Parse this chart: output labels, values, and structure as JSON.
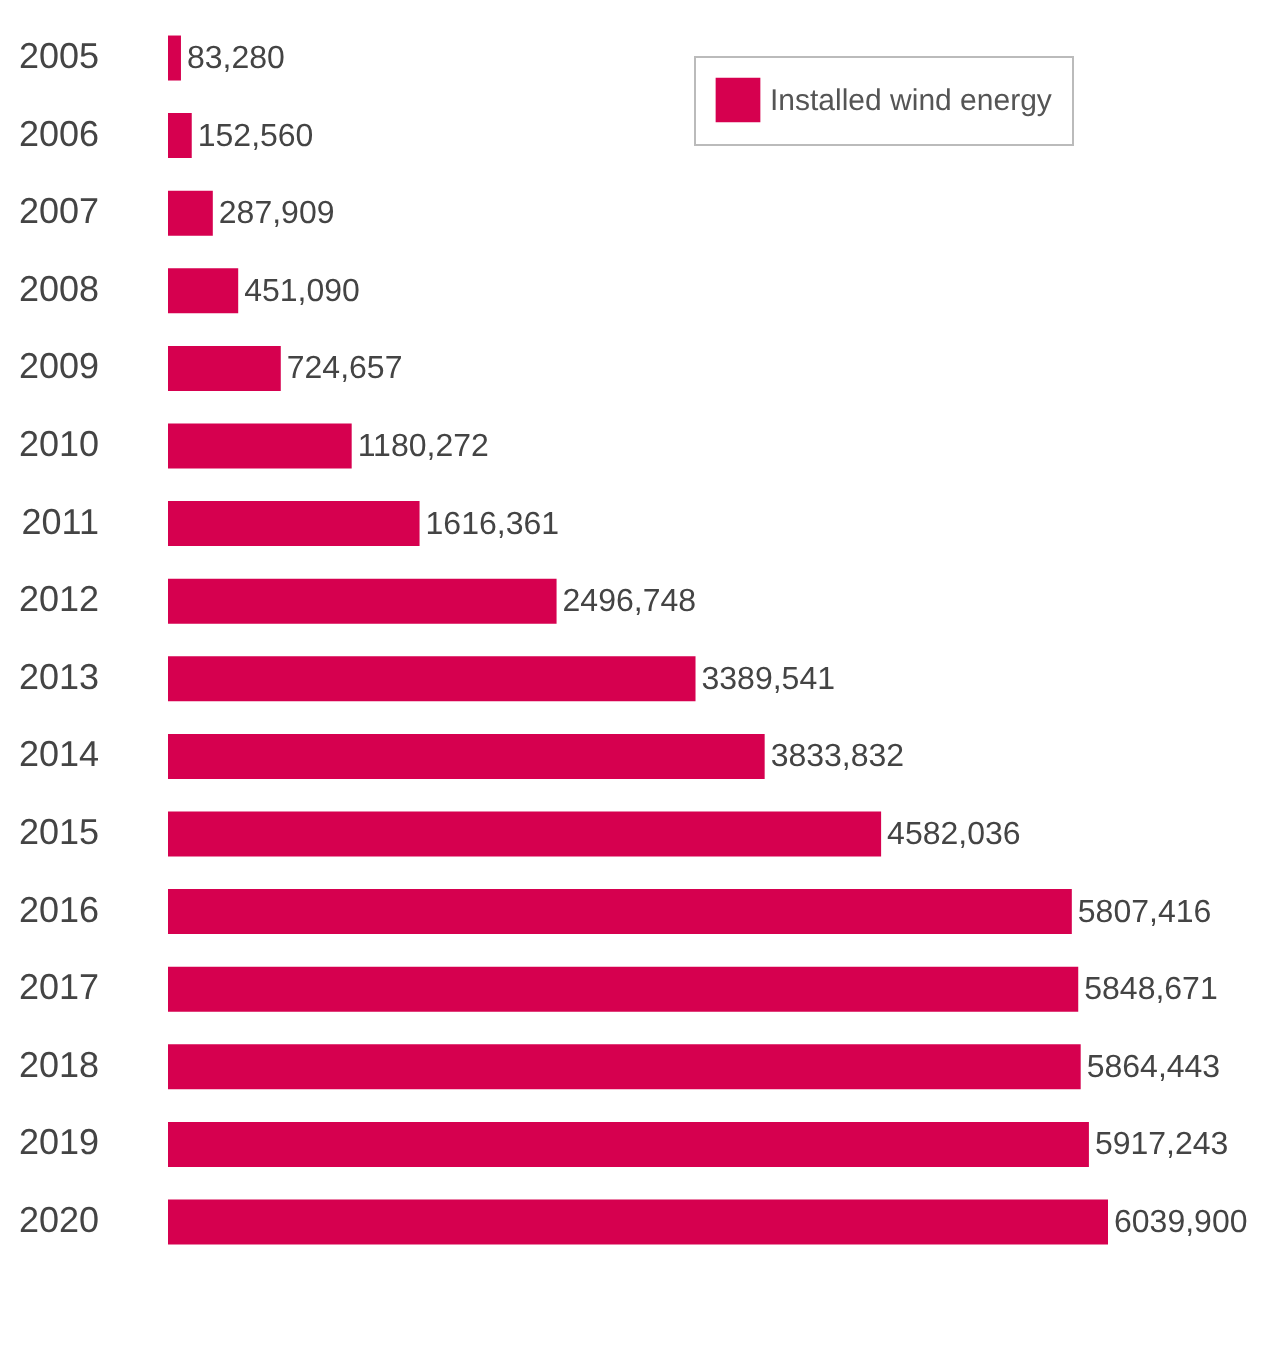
{
  "chart_data": {
    "type": "bar",
    "orientation": "horizontal",
    "categories": [
      "2005",
      "2006",
      "2007",
      "2008",
      "2009",
      "2010",
      "2011",
      "2012",
      "2013",
      "2014",
      "2015",
      "2016",
      "2017",
      "2018",
      "2019",
      "2020"
    ],
    "series": [
      {
        "name": "Installed wind energy",
        "color": "#d6004f",
        "values": [
          83280,
          152560,
          287909,
          451090,
          724657,
          1180272,
          1616361,
          2496748,
          3389541,
          3833832,
          4582036,
          5807416,
          5848671,
          5864443,
          5917243,
          6039900
        ],
        "value_labels": [
          "83,280",
          "152,560",
          "287,909",
          "451,090",
          "724,657",
          "1180,272",
          "1616,361",
          "2496,748",
          "3389,541",
          "3833,832",
          "4582,036",
          "5807,416",
          "5848,671",
          "5864,443",
          "5917,243",
          "6039,900"
        ]
      }
    ],
    "legend": "top right",
    "grid": false
  }
}
